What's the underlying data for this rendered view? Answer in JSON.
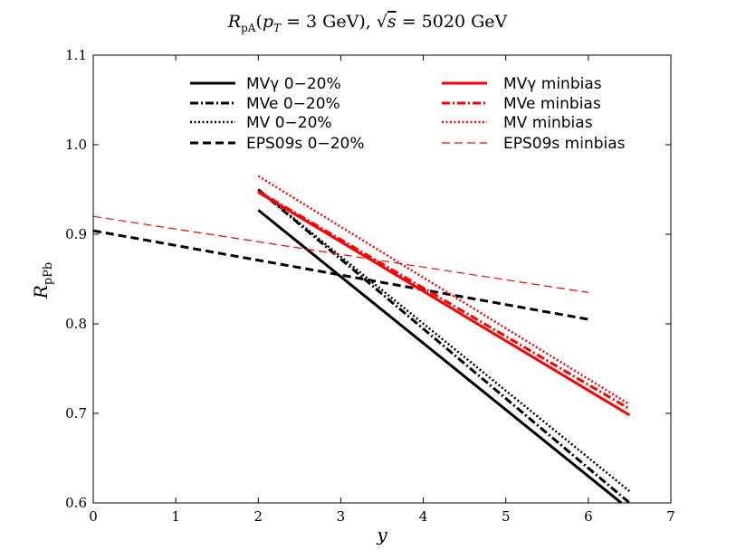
{
  "chart_data": {
    "type": "line",
    "title": "R_pA(p_T = 3 GeV), √s = 5020 GeV",
    "xlabel": "y",
    "ylabel": "R_pPb",
    "xlim": [
      0,
      7
    ],
    "ylim": [
      0.6,
      1.1
    ],
    "xticks": [
      "0",
      "1",
      "2",
      "3",
      "4",
      "5",
      "6",
      "7"
    ],
    "yticks": [
      "0.6",
      "0.7",
      "0.8",
      "0.9",
      "1.0",
      "1.1"
    ],
    "legend_location": "top-center",
    "series": [
      {
        "name": "MVγ 0−20%",
        "color": "#000000",
        "style": "solid",
        "x": [
          2,
          6.4
        ],
        "y": [
          0.927,
          0.6
        ]
      },
      {
        "name": "MVe 0−20%",
        "color": "#000000",
        "style": "dashdot",
        "x": [
          2,
          6.5
        ],
        "y": [
          0.95,
          0.6
        ]
      },
      {
        "name": "MV 0−20%",
        "color": "#000000",
        "style": "dotted",
        "x": [
          2,
          6.5
        ],
        "y": [
          0.95,
          0.613
        ]
      },
      {
        "name": "EPS09s 0−20%",
        "color": "#000000",
        "style": "dashed",
        "x": [
          0,
          6
        ],
        "y": [
          0.904,
          0.805
        ]
      },
      {
        "name": "MVγ minbias",
        "color": "#ff0000",
        "style": "solid",
        "x": [
          2,
          6.5
        ],
        "y": [
          0.947,
          0.698
        ]
      },
      {
        "name": "MVe minbias",
        "color": "#ff0000",
        "style": "dashdot",
        "x": [
          2,
          6.5
        ],
        "y": [
          0.948,
          0.705
        ]
      },
      {
        "name": "MV minbias",
        "color": "#ff0000",
        "style": "dotted",
        "x": [
          2,
          6.5
        ],
        "y": [
          0.965,
          0.71
        ]
      },
      {
        "name": "EPS09s minbias",
        "color": "#ff0000",
        "style": "thindashed",
        "x": [
          0,
          6
        ],
        "y": [
          0.92,
          0.835
        ]
      }
    ]
  }
}
